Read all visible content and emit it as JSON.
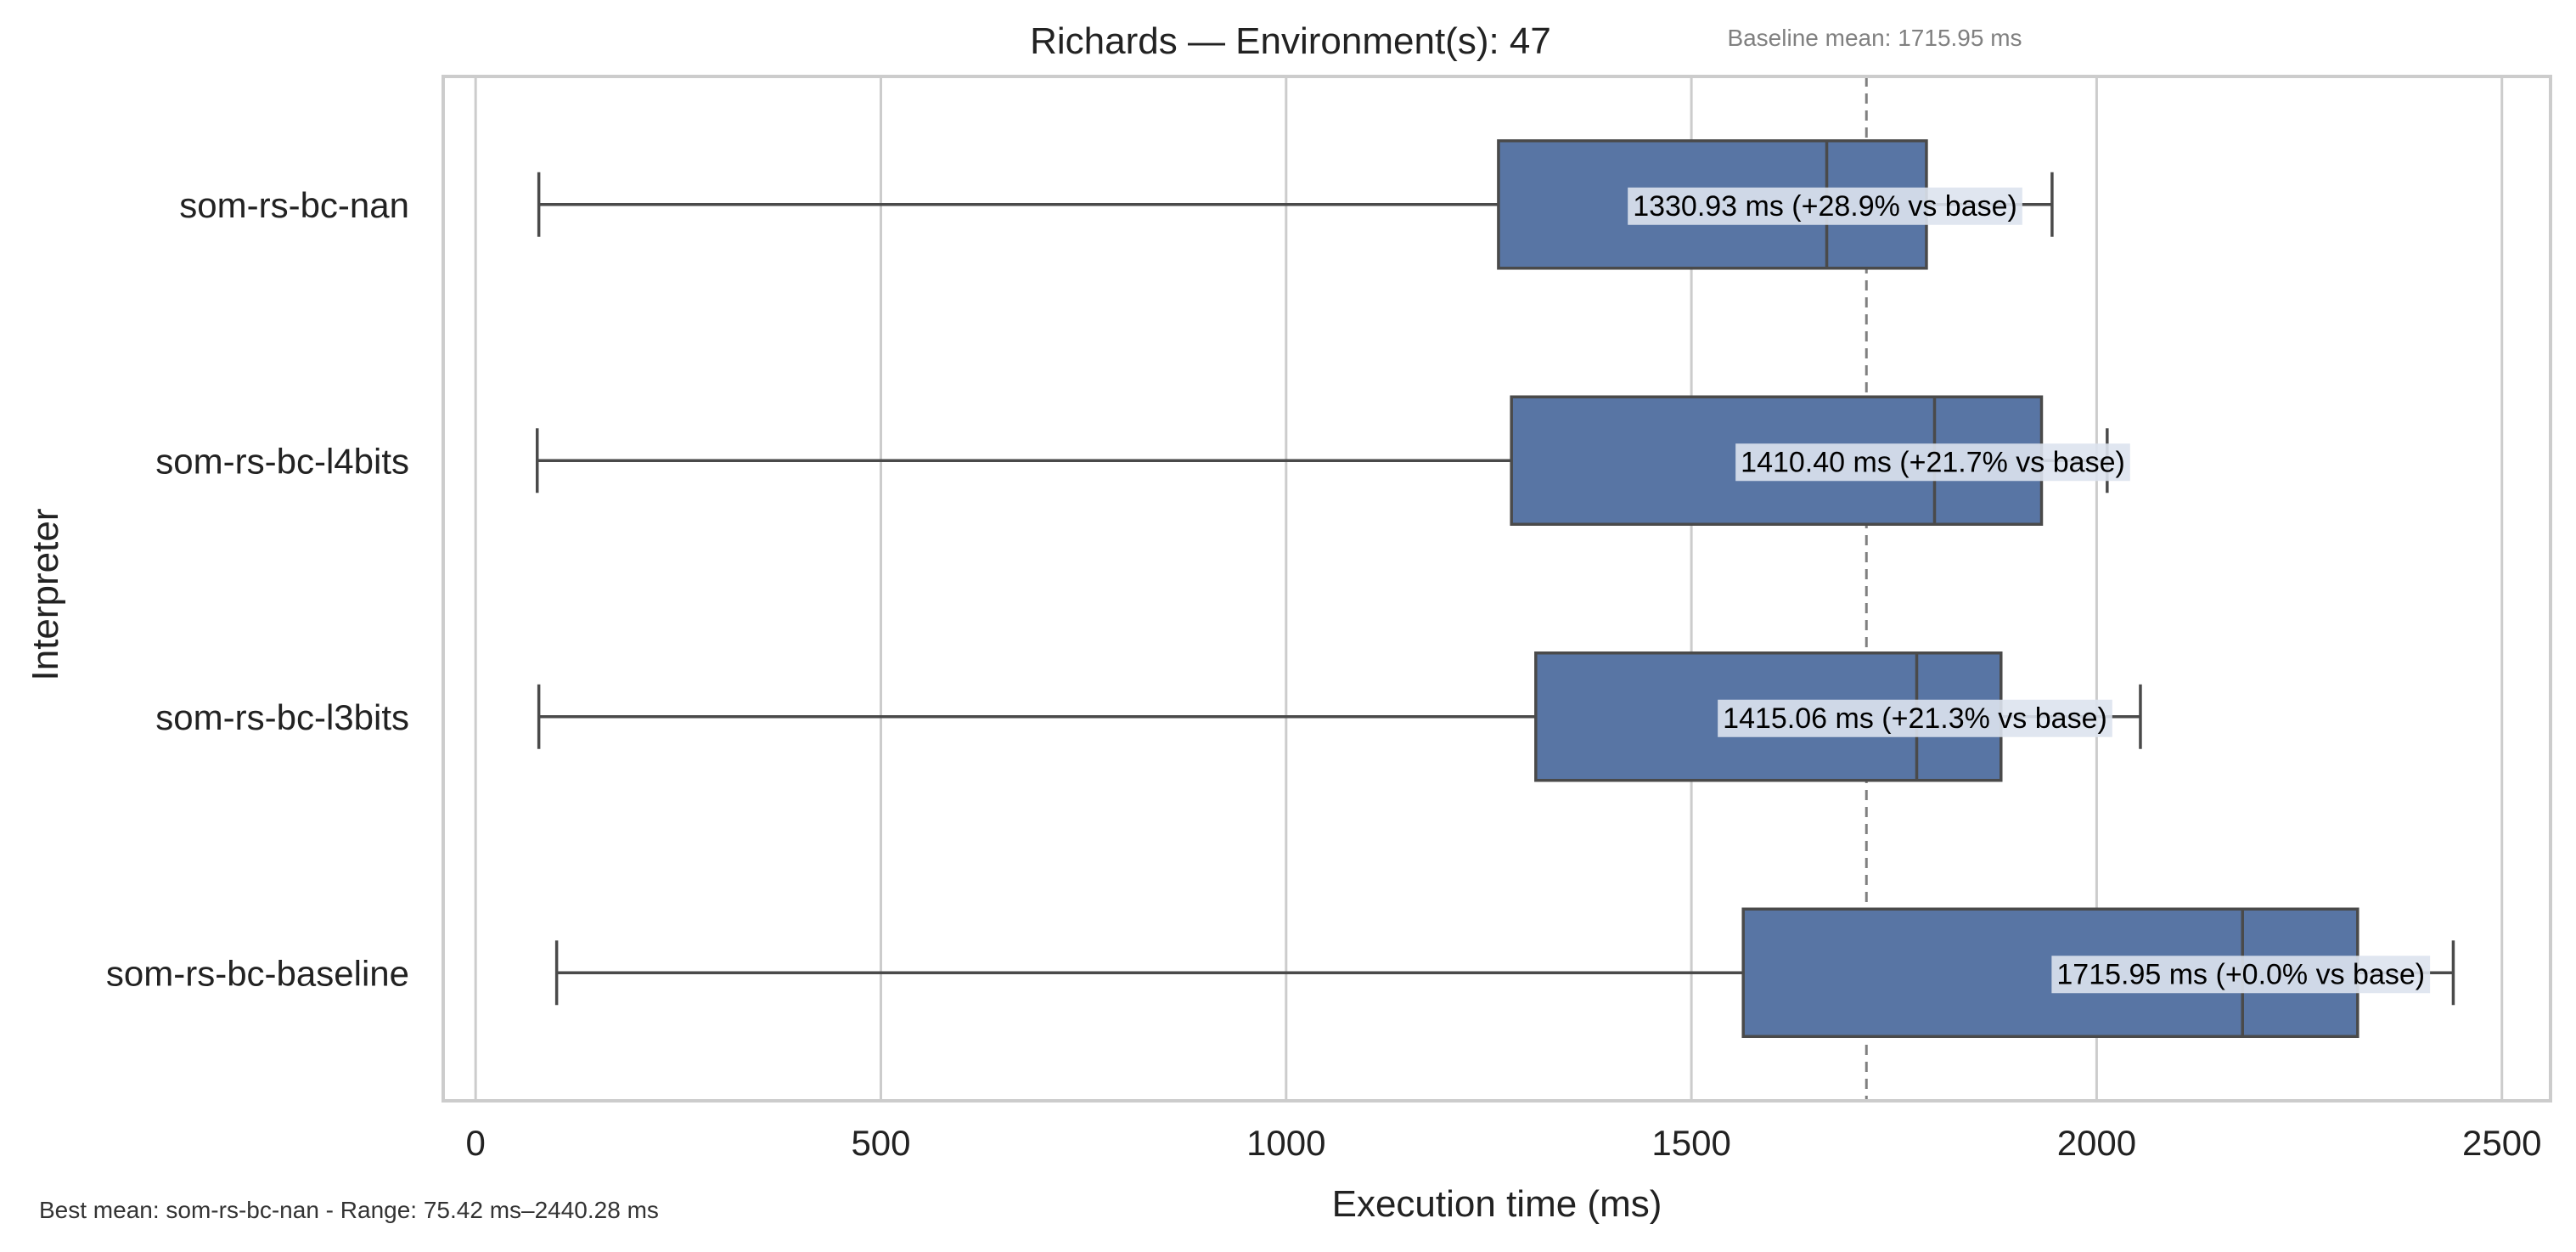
{
  "chart_data": {
    "type": "box",
    "title": "Richards — Environment(s): 47",
    "xlabel": "Execution time (ms)",
    "ylabel": "Interpreter",
    "xlim": [
      -40,
      2560
    ],
    "xticks": [
      0,
      500,
      1000,
      1500,
      2000,
      2500
    ],
    "orientation": "horizontal",
    "grid": "vertical",
    "baseline": {
      "value": 1715.95,
      "label": "Baseline mean: 1715.95 ms"
    },
    "series": [
      {
        "name": "som-rs-bc-nan",
        "whisker_low": 78,
        "q1": 1262,
        "median": 1667,
        "q3": 1790,
        "whisker_high": 1945,
        "mean_label": "1330.93 ms  (+28.9% vs base)"
      },
      {
        "name": "som-rs-bc-l4bits",
        "whisker_low": 76,
        "q1": 1278,
        "median": 1800,
        "q3": 1932,
        "whisker_high": 2013,
        "mean_label": "1410.40 ms  (+21.7% vs base)"
      },
      {
        "name": "som-rs-bc-l3bits",
        "whisker_low": 78,
        "q1": 1308,
        "median": 1778,
        "q3": 1882,
        "whisker_high": 2054,
        "mean_label": "1415.06 ms  (+21.3% vs base)"
      },
      {
        "name": "som-rs-bc-baseline",
        "whisker_low": 100,
        "q1": 1564,
        "median": 2180,
        "q3": 2322,
        "whisker_high": 2440,
        "mean_label": "1715.95 ms  (+0.0% vs base)"
      }
    ],
    "footnote": "Best mean: som-rs-bc-nan - Range: 75.42 ms–2440.28 ms",
    "colors": {
      "box": "#5875a4",
      "edge": "#4a4a4a",
      "grid": "#cccccc",
      "frame": "#cccccc",
      "baseline": "#808080",
      "label_bg": "#dde3ee"
    }
  }
}
